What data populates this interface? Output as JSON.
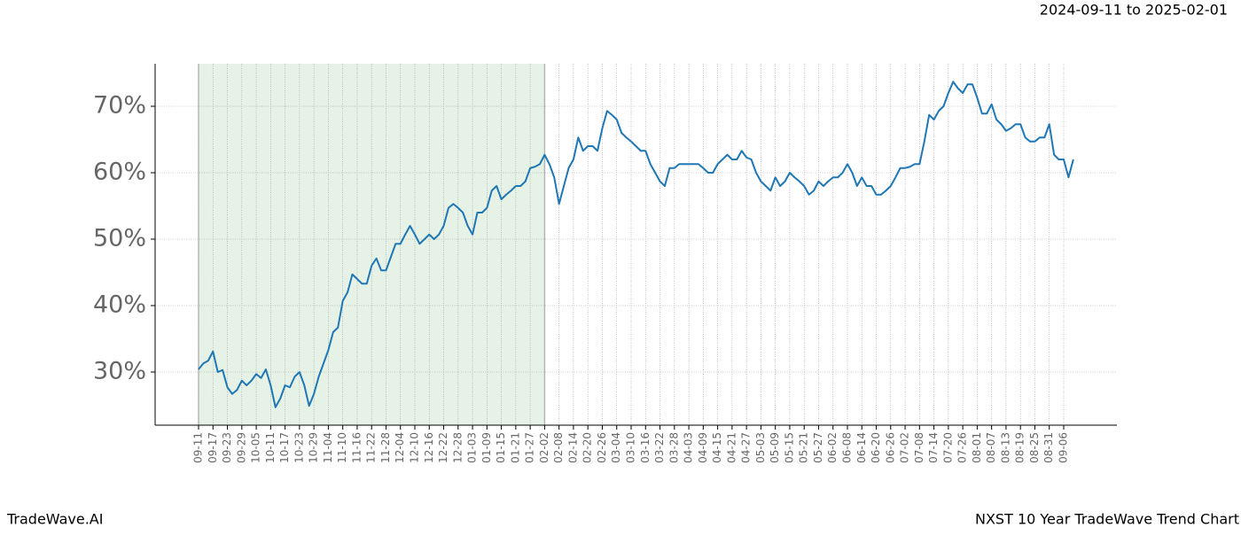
{
  "chart_data": {
    "type": "line",
    "title": "NXST 10 Year TradeWave Trend Chart",
    "subtitle": "2024-09-11 to 2025-02-01",
    "watermark": "TradeWave.AI",
    "categories": [
      "09-11",
      null,
      null,
      "09-17",
      null,
      null,
      "09-23",
      null,
      null,
      "09-29",
      null,
      null,
      "10-05",
      null,
      null,
      "10-11",
      null,
      null,
      "10-17",
      null,
      null,
      "10-23",
      null,
      null,
      "10-29",
      null,
      null,
      "11-04",
      null,
      null,
      "11-10",
      null,
      null,
      "11-16",
      null,
      null,
      "11-22",
      null,
      null,
      "11-28",
      null,
      null,
      "12-04",
      null,
      null,
      "12-10",
      null,
      null,
      "12-16",
      null,
      null,
      "12-22",
      null,
      null,
      "12-28",
      null,
      null,
      "01-03",
      null,
      null,
      "01-09",
      null,
      null,
      "01-15",
      null,
      null,
      "01-21",
      null,
      null,
      "01-27",
      null,
      null,
      "02-02",
      null,
      null,
      "02-08",
      null,
      null,
      "02-14",
      null,
      null,
      "02-20",
      null,
      null,
      "02-26",
      null,
      null,
      "03-04",
      null,
      null,
      "03-10",
      null,
      null,
      "03-16",
      null,
      null,
      "03-22",
      null,
      null,
      "03-28",
      null,
      null,
      "04-03",
      null,
      null,
      "04-09",
      null,
      null,
      "04-15",
      null,
      null,
      "04-21",
      null,
      null,
      "04-27",
      null,
      null,
      "05-03",
      null,
      null,
      "05-09",
      null,
      null,
      "05-15",
      null,
      null,
      "05-21",
      null,
      null,
      "05-27",
      null,
      null,
      "06-02",
      null,
      null,
      "06-08",
      null,
      null,
      "06-14",
      null,
      null,
      "06-20",
      null,
      null,
      "06-26",
      null,
      null,
      "07-02",
      null,
      null,
      "07-08",
      null,
      null,
      "07-14",
      null,
      null,
      "07-20",
      null,
      null,
      "07-26",
      null,
      null,
      "08-01",
      null,
      null,
      "08-07",
      null,
      null,
      "08-13",
      null,
      null,
      "08-19",
      null,
      null,
      "08-25",
      null,
      null,
      "08-31",
      null,
      null,
      "09-06",
      null,
      null
    ],
    "series": [
      {
        "color": "#1f77b4",
        "values": [
          30.4,
          31.3,
          31.7,
          33.1,
          30.0,
          30.3,
          27.7,
          26.7,
          27.3,
          28.7,
          28.0,
          28.7,
          29.7,
          29.1,
          30.4,
          28.0,
          24.7,
          26.0,
          28.0,
          27.7,
          29.3,
          30.0,
          28.0,
          24.9,
          26.7,
          29.3,
          31.3,
          33.3,
          36.0,
          36.7,
          40.7,
          42.0,
          44.7,
          44.0,
          43.3,
          43.3,
          46.0,
          47.1,
          45.3,
          45.3,
          47.3,
          49.3,
          49.3,
          50.7,
          52.0,
          50.7,
          49.3,
          50.0,
          50.7,
          50.0,
          50.7,
          52.0,
          54.7,
          55.3,
          54.7,
          54.0,
          52.0,
          50.7,
          54.0,
          54.0,
          54.7,
          57.3,
          58.0,
          56.0,
          56.7,
          57.3,
          58.0,
          58.0,
          58.7,
          60.7,
          60.9,
          61.3,
          62.7,
          61.3,
          59.3,
          55.3,
          58.0,
          60.7,
          62.0,
          65.3,
          63.3,
          64.0,
          64.0,
          63.3,
          66.7,
          69.3,
          68.7,
          68.0,
          66.0,
          65.3,
          64.7,
          64.0,
          63.3,
          63.3,
          61.3,
          60.0,
          58.7,
          58.0,
          60.7,
          60.7,
          61.3,
          61.3,
          61.3,
          61.3,
          61.3,
          60.7,
          60.0,
          60.0,
          61.3,
          62.0,
          62.7,
          62.0,
          62.0,
          63.3,
          62.3,
          62.0,
          60.0,
          58.7,
          58.0,
          57.3,
          59.3,
          58.0,
          58.7,
          60.0,
          59.3,
          58.7,
          58.0,
          56.7,
          57.3,
          58.7,
          58.0,
          58.7,
          59.3,
          59.3,
          60.0,
          61.3,
          60.0,
          58.0,
          59.3,
          58.0,
          58.0,
          56.7,
          56.7,
          57.3,
          58.0,
          59.3,
          60.7,
          60.7,
          60.9,
          61.3,
          61.3,
          64.7,
          68.7,
          68.0,
          69.3,
          70.0,
          72.0,
          73.7,
          72.7,
          72.0,
          73.3,
          73.3,
          71.3,
          68.9,
          68.9,
          70.3,
          68.0,
          67.3,
          66.3,
          66.7,
          67.3,
          67.3,
          65.3,
          64.7,
          64.7,
          65.3,
          65.3,
          67.3,
          62.7,
          62.0,
          62.0,
          59.3,
          62.0
        ]
      }
    ],
    "highlight": {
      "start": 0,
      "end": 72,
      "color": "#e6f2e6"
    },
    "ylim": [
      22,
      76.4
    ],
    "yticks": [
      {
        "value": 30,
        "label": "30%"
      },
      {
        "value": 40,
        "label": "40%"
      },
      {
        "value": 50,
        "label": "50%"
      },
      {
        "value": 60,
        "label": "60%"
      },
      {
        "value": 70,
        "label": "70%"
      }
    ],
    "grid": true
  }
}
